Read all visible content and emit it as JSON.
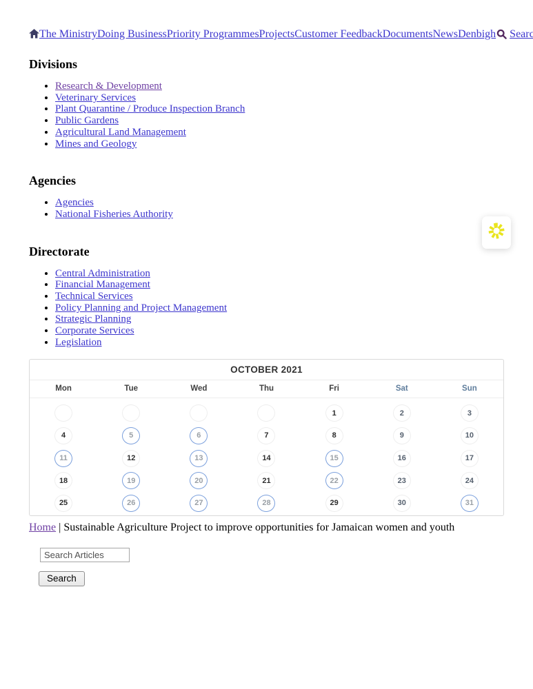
{
  "nav": {
    "links": [
      {
        "label": "The Ministry"
      },
      {
        "label": "Doing Business"
      },
      {
        "label": "Priority Programmes"
      },
      {
        "label": "Projects"
      },
      {
        "label": "Customer Feedback"
      },
      {
        "label": "Documents"
      },
      {
        "label": "News"
      },
      {
        "label": "Denbigh"
      }
    ],
    "search_label": "Search"
  },
  "sections": [
    {
      "heading": "Divisions",
      "items": [
        {
          "label": "Research & Development",
          "visited": true
        },
        {
          "label": "Veterinary Services",
          "visited": false
        },
        {
          "label": "Plant Quarantine / Produce Inspection Branch",
          "visited": false
        },
        {
          "label": "Public Gardens",
          "visited": false
        },
        {
          "label": "Agricultural Land Management",
          "visited": false
        },
        {
          "label": "Mines and Geology",
          "visited": false
        }
      ]
    },
    {
      "heading": "Agencies",
      "items": [
        {
          "label": "Agencies",
          "visited": false
        },
        {
          "label": "National Fisheries Authority",
          "visited": false
        }
      ]
    },
    {
      "heading": "Directorate",
      "items": [
        {
          "label": "Central Administration",
          "visited": false
        },
        {
          "label": "Financial Management",
          "visited": false
        },
        {
          "label": "Technical Services",
          "visited": false
        },
        {
          "label": "Policy Planning and Project Management",
          "visited": false
        },
        {
          "label": "Strategic Planning",
          "visited": false
        },
        {
          "label": "Corporate Services",
          "visited": false
        },
        {
          "label": "Legislation",
          "visited": false
        }
      ]
    }
  ],
  "calendar": {
    "title": "OCTOBER 2021",
    "day_headers": [
      {
        "label": "Mon",
        "weekend": false
      },
      {
        "label": "Tue",
        "weekend": false
      },
      {
        "label": "Wed",
        "weekend": false
      },
      {
        "label": "Thu",
        "weekend": false
      },
      {
        "label": "Fri",
        "weekend": false
      },
      {
        "label": "Sat",
        "weekend": true
      },
      {
        "label": "Sun",
        "weekend": true
      }
    ],
    "weeks": [
      {
        "days": [
          {
            "d": "",
            "t": "empty"
          },
          {
            "d": "",
            "t": "empty"
          },
          {
            "d": "",
            "t": "empty"
          },
          {
            "d": "",
            "t": "empty"
          },
          {
            "d": "1",
            "t": "wd"
          },
          {
            "d": "2",
            "t": "we"
          },
          {
            "d": "3",
            "t": "we"
          }
        ]
      },
      {
        "days": [
          {
            "d": "4",
            "t": "wd"
          },
          {
            "d": "5",
            "t": "ev"
          },
          {
            "d": "6",
            "t": "ev"
          },
          {
            "d": "7",
            "t": "wd"
          },
          {
            "d": "8",
            "t": "wd"
          },
          {
            "d": "9",
            "t": "we"
          },
          {
            "d": "10",
            "t": "we"
          }
        ]
      },
      {
        "days": [
          {
            "d": "11",
            "t": "ev"
          },
          {
            "d": "12",
            "t": "wd"
          },
          {
            "d": "13",
            "t": "ev"
          },
          {
            "d": "14",
            "t": "wd"
          },
          {
            "d": "15",
            "t": "ev"
          },
          {
            "d": "16",
            "t": "we"
          },
          {
            "d": "17",
            "t": "we"
          }
        ]
      },
      {
        "days": [
          {
            "d": "18",
            "t": "wd"
          },
          {
            "d": "19",
            "t": "ev"
          },
          {
            "d": "20",
            "t": "ev"
          },
          {
            "d": "21",
            "t": "wd"
          },
          {
            "d": "22",
            "t": "ev"
          },
          {
            "d": "23",
            "t": "we"
          },
          {
            "d": "24",
            "t": "we"
          }
        ]
      },
      {
        "days": [
          {
            "d": "25",
            "t": "wd"
          },
          {
            "d": "26",
            "t": "ev"
          },
          {
            "d": "27",
            "t": "ev"
          },
          {
            "d": "28",
            "t": "ev"
          },
          {
            "d": "29",
            "t": "wd"
          },
          {
            "d": "30",
            "t": "we"
          },
          {
            "d": "31",
            "t": "ev"
          }
        ]
      }
    ],
    "event_dates": [
      5,
      6,
      11,
      13,
      15,
      19,
      20,
      22,
      26,
      27,
      28,
      31
    ]
  },
  "breadcrumb": {
    "home": "Home",
    "separator": "|",
    "title": "Sustainable Agriculture Project to improve opportunities for Jamaican women and youth"
  },
  "article_search": {
    "placeholder": "Search Articles",
    "button_label": "Search"
  },
  "icons": {
    "home": "home-icon",
    "search": "search-magnifier-icon",
    "accessibility": "asterisk-spinner-icon"
  },
  "colors": {
    "link": "#3c35cd",
    "visited_link": "#6e3fa3",
    "weekend_header": "#5f7d9c",
    "event_circle": "#7a9fdc",
    "event_number": "#9aa0a6",
    "widget_yellow": "#e9e41f"
  }
}
